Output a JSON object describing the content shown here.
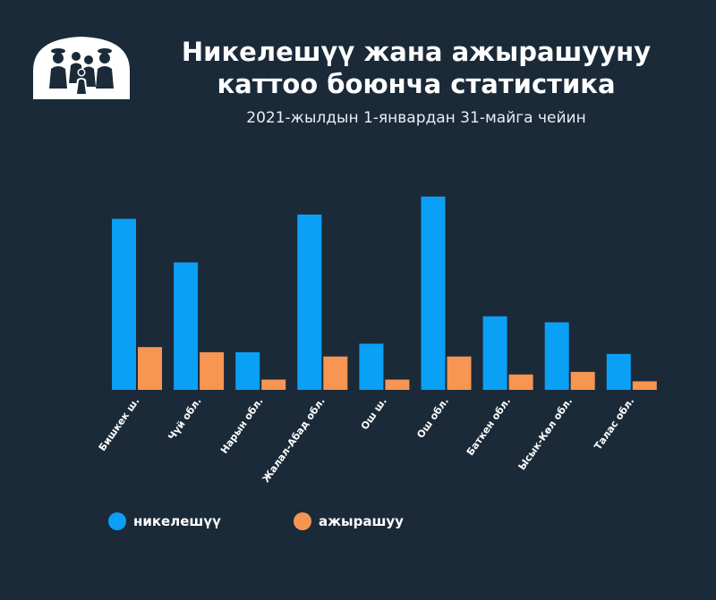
{
  "header": {
    "title_line1": "Никелешүү жана ажырашууну",
    "title_line2": "каттоо боюнча статистика",
    "subtitle": "2021-жылдын 1-январдан 31-майга чейин"
  },
  "colors": {
    "background": "#1b2a38",
    "marriage": "#0aa0f5",
    "divorce": "#f79552"
  },
  "legend": {
    "position": "bottom",
    "items": [
      {
        "label": "никелешүү",
        "color": "#0aa0f5"
      },
      {
        "label": "ажырашуу",
        "color": "#f79552"
      }
    ]
  },
  "chart_data": {
    "type": "bar",
    "title": "Никелешүү жана ажырашууну каттоо боюнча статистика",
    "subtitle": "2021-жылдын 1-январдан 31-майга чейин",
    "xlabel": "",
    "ylabel": "",
    "ylim": [
      0,
      230
    ],
    "grid": false,
    "legend_placement": "bottom-left",
    "categories": [
      "Бишкек ш.",
      "Чүй обл.",
      "Нарын обл.",
      "Жалал-Абад обл.",
      "Ош ш.",
      "Ош обл.",
      "Баткен обл.",
      "Ысык-Көл обл.",
      "Талас обл."
    ],
    "series": [
      {
        "name": "никелешүү",
        "color": "#0aa0f5",
        "values": [
          200,
          149,
          44,
          205,
          54,
          226,
          86,
          79,
          42
        ]
      },
      {
        "name": "ажырашуу",
        "color": "#f79552",
        "values": [
          50,
          44,
          12,
          39,
          12,
          39,
          18,
          21,
          10
        ]
      }
    ]
  }
}
